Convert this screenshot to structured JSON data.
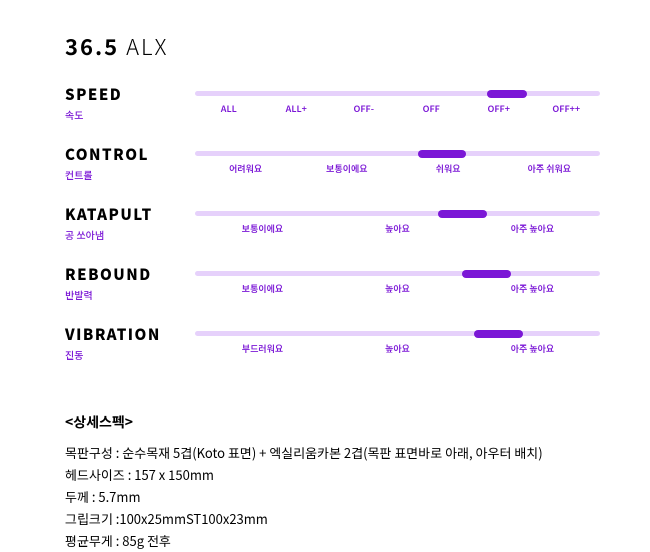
{
  "title_main": "36.5",
  "title_sub": "ALX",
  "colors": {
    "accent": "#7b17d6",
    "track_bg": "#e6d1fb",
    "marker": "#7b17d6",
    "label": "#7b17d6"
  },
  "specs": [
    {
      "en": "SPEED",
      "ko": "속도",
      "ticks": [
        "ALL",
        "ALL+",
        "OFF-",
        "OFF",
        "OFF+",
        "OFF++"
      ],
      "marker_left_pct": 72,
      "marker_width_pct": 10
    },
    {
      "en": "CONTROL",
      "ko": "컨트롤",
      "ticks": [
        "어려워요",
        "보통이에요",
        "쉬워요",
        "아주 쉬워요"
      ],
      "marker_left_pct": 55,
      "marker_width_pct": 12
    },
    {
      "en": "KATAPULT",
      "ko": "공 쏘아냄",
      "ticks": [
        "보통이에요",
        "높아요",
        "아주 높아요"
      ],
      "marker_left_pct": 60,
      "marker_width_pct": 12
    },
    {
      "en": "REBOUND",
      "ko": "반발력",
      "ticks": [
        "보통이에요",
        "높아요",
        "아주 높아요"
      ],
      "marker_left_pct": 66,
      "marker_width_pct": 12
    },
    {
      "en": "VIBRATION",
      "ko": "진동",
      "ticks": [
        "부드러워요",
        "높아요",
        "아주 높아요"
      ],
      "marker_left_pct": 69,
      "marker_width_pct": 12
    }
  ],
  "detail_header": "<상세스펙>",
  "detail_lines": [
    "목판구성 : 순수목재 5겹(Koto 표면) + 엑실리움카본 2겹(목판 표면바로 아래, 아우터 배치)",
    "헤드사이즈 : 157 x 150mm",
    "두께 : 5.7mm",
    "그립크기 :100x25mmST100x23mm",
    "평균무게 : 85g 전후"
  ]
}
